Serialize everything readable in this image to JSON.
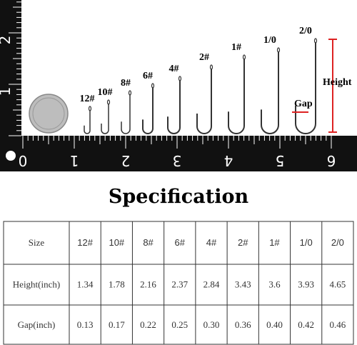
{
  "photo": {
    "sizes": [
      "12#",
      "10#",
      "8#",
      "6#",
      "4#",
      "2#",
      "1#",
      "1/0",
      "2/0"
    ],
    "height_label": "Height",
    "gap_label": "Gap",
    "ruler_bottom": [
      "0",
      "1",
      "2",
      "3",
      "4",
      "5",
      "6"
    ],
    "ruler_left": [
      "1",
      "2"
    ]
  },
  "title": "Specification",
  "table": {
    "rows": [
      [
        "Size",
        "12#",
        "10#",
        "8#",
        "6#",
        "4#",
        "2#",
        "1#",
        "1/0",
        "2/0"
      ],
      [
        "Height(inch)",
        "1.34",
        "1.78",
        "2.16",
        "2.37",
        "2.84",
        "3.43",
        "3.6",
        "3.93",
        "4.65"
      ],
      [
        "Gap(inch)",
        "0.13",
        "0.17",
        "0.22",
        "0.25",
        "0.30",
        "0.36",
        "0.40",
        "0.42",
        "0.46"
      ]
    ]
  }
}
